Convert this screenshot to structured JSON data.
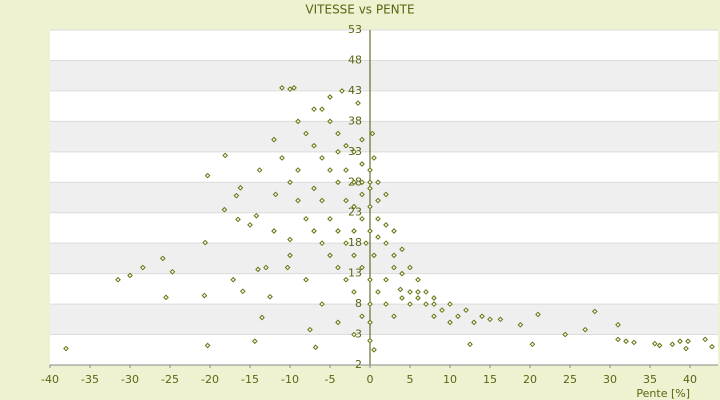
{
  "chart_data": {
    "type": "scatter",
    "title": "VITESSE vs PENTE",
    "x_label": "Pente [%]",
    "xlim": [
      -40,
      43.5
    ],
    "ylim": [
      -2,
      53
    ],
    "xticks": [
      -40,
      -35,
      -30,
      -25,
      -20,
      -15,
      -10,
      -5,
      0,
      5,
      10,
      15,
      20,
      25,
      30,
      35,
      40
    ],
    "yticks": [
      -2,
      3,
      8,
      13,
      18,
      23,
      28,
      33,
      38,
      43,
      48,
      53
    ],
    "grid": "bands",
    "color": "#66720f",
    "series": [
      {
        "name": "VITESSE",
        "color": "#66720f",
        "x": [
          -38,
          -31.5,
          -30,
          -28.4,
          -25.9,
          -25.5,
          -24.7,
          -20.7,
          -20.3,
          -20.3,
          -18.1,
          -20.6,
          -16.7,
          -16.2,
          -18.2,
          -16.5,
          -17.1,
          -15.9,
          -15,
          -14.2,
          -14,
          -13.8,
          -14.4,
          -13.5,
          -12.5,
          -11.8,
          -11,
          -10,
          -9.5,
          -10,
          -10.3,
          -6.8,
          -7.5,
          3.8,
          12.5,
          15,
          16.3,
          18.8,
          21,
          20.3,
          24.4,
          26.9,
          28.1,
          31,
          31,
          32,
          33,
          35.6,
          36.2,
          37.8,
          38.75,
          39.75,
          41.9,
          42.75,
          39.5,
          -5,
          -4,
          -3,
          -2,
          -1,
          0,
          -1,
          0,
          1,
          0,
          -1,
          -2,
          0,
          1,
          2,
          -3,
          -4,
          -5,
          -6,
          -7,
          -6,
          -5,
          -8,
          -9,
          -7,
          -6,
          -5,
          -4,
          -3,
          -2,
          -1,
          0,
          -2,
          -1,
          0,
          0.5,
          1,
          2,
          3,
          3,
          4,
          5,
          4,
          6,
          7,
          8,
          5,
          6,
          7,
          8,
          9,
          10,
          11,
          12,
          10,
          2,
          1,
          0,
          0,
          0,
          -1,
          -2,
          -3,
          -4,
          -5,
          -6,
          -7,
          -8,
          -9,
          -10,
          -11,
          -12,
          -9,
          -7,
          -3,
          -2,
          -1,
          0.3,
          -4,
          1,
          2,
          0.5,
          -0.5,
          3,
          4,
          6,
          5,
          8,
          13,
          14,
          -8,
          -10,
          -12,
          -4,
          -6,
          -2,
          0.5,
          -1.5,
          -3.5,
          2,
          3,
          -13
        ],
        "values": [
          0.7,
          12,
          12.7,
          14,
          15.5,
          9.1,
          13.3,
          9.4,
          1.2,
          29.1,
          32.4,
          18.1,
          25.8,
          27.1,
          23.5,
          21.9,
          12,
          10.1,
          21,
          22.5,
          13.7,
          30,
          1.9,
          5.8,
          9.2,
          26,
          43.5,
          43.3,
          43.5,
          18.6,
          14,
          0.9,
          3.8,
          10.4,
          1.4,
          5.5,
          5.5,
          4.6,
          6.3,
          1.4,
          3,
          3.8,
          6.8,
          4.6,
          2.2,
          1.9,
          1.7,
          1.5,
          1.2,
          1.4,
          1.9,
          1.9,
          2.2,
          1,
          0.7,
          38,
          36,
          34,
          33,
          31,
          30,
          28,
          27,
          25,
          24,
          22,
          20,
          20,
          19,
          18,
          25,
          28,
          30,
          32,
          34,
          40,
          42,
          36,
          30,
          27,
          25,
          22,
          20,
          18,
          16,
          14,
          12,
          24,
          26,
          28,
          32,
          22,
          21,
          16,
          14,
          13,
          10,
          9,
          9,
          8,
          8,
          8,
          10,
          10,
          9,
          7,
          8,
          6,
          7,
          5,
          12,
          10,
          8,
          5,
          2,
          6,
          10,
          12,
          14,
          16,
          18,
          20,
          22,
          25,
          28,
          32,
          35,
          38,
          40,
          30,
          28,
          35,
          36,
          33,
          28,
          26,
          16,
          18,
          20,
          17,
          12,
          14,
          6,
          5,
          6,
          12,
          16,
          20,
          5,
          8,
          3,
          0.5,
          41,
          43,
          8,
          6,
          14
        ]
      }
    ]
  }
}
